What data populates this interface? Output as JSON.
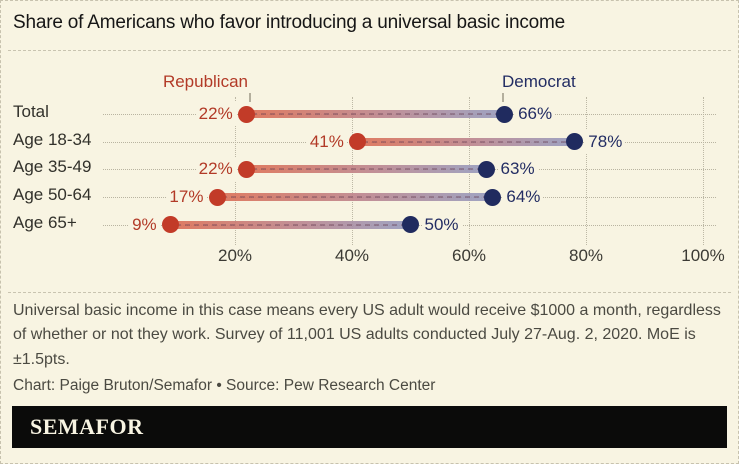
{
  "title": "Share of Americans who favor introducing a universal basic income",
  "legend": {
    "republican": "Republican",
    "democrat": "Democrat"
  },
  "chart_data": {
    "type": "dumbbell",
    "categories": [
      "Total",
      "Age 18-34",
      "Age 35-49",
      "Age 50-64",
      "Age 65+"
    ],
    "series": [
      {
        "name": "Republican",
        "values": [
          22,
          41,
          22,
          17,
          9
        ]
      },
      {
        "name": "Democrat",
        "values": [
          66,
          78,
          63,
          64,
          50
        ]
      }
    ],
    "value_suffix": "%",
    "x_ticks": [
      "20%",
      "40%",
      "60%",
      "80%",
      "100%"
    ],
    "x_tick_values": [
      20,
      40,
      60,
      80,
      100
    ],
    "xlim": [
      0,
      105
    ],
    "grid": "vertical-dotted",
    "legend_position": "top"
  },
  "colors": {
    "background": "#f8f4e2",
    "republican": "#b23a27",
    "republican_dot": "#c23b28",
    "democrat": "#232d63",
    "democrat_dot": "#202b5f",
    "band_left": "#dd6f55",
    "band_right": "#959cc0",
    "gridline": "#bdb8a5"
  },
  "footnote": "Universal basic income in this case means every US adult would receive $1000 a month, regardless of whether or not they work. Survey of 11,001 US adults conducted July 27-Aug. 2, 2020. MoE is ±1.5pts.",
  "credit": "Chart: Paige Bruton/Semafor • Source: Pew Research Center",
  "logo": "SEMAFOR"
}
